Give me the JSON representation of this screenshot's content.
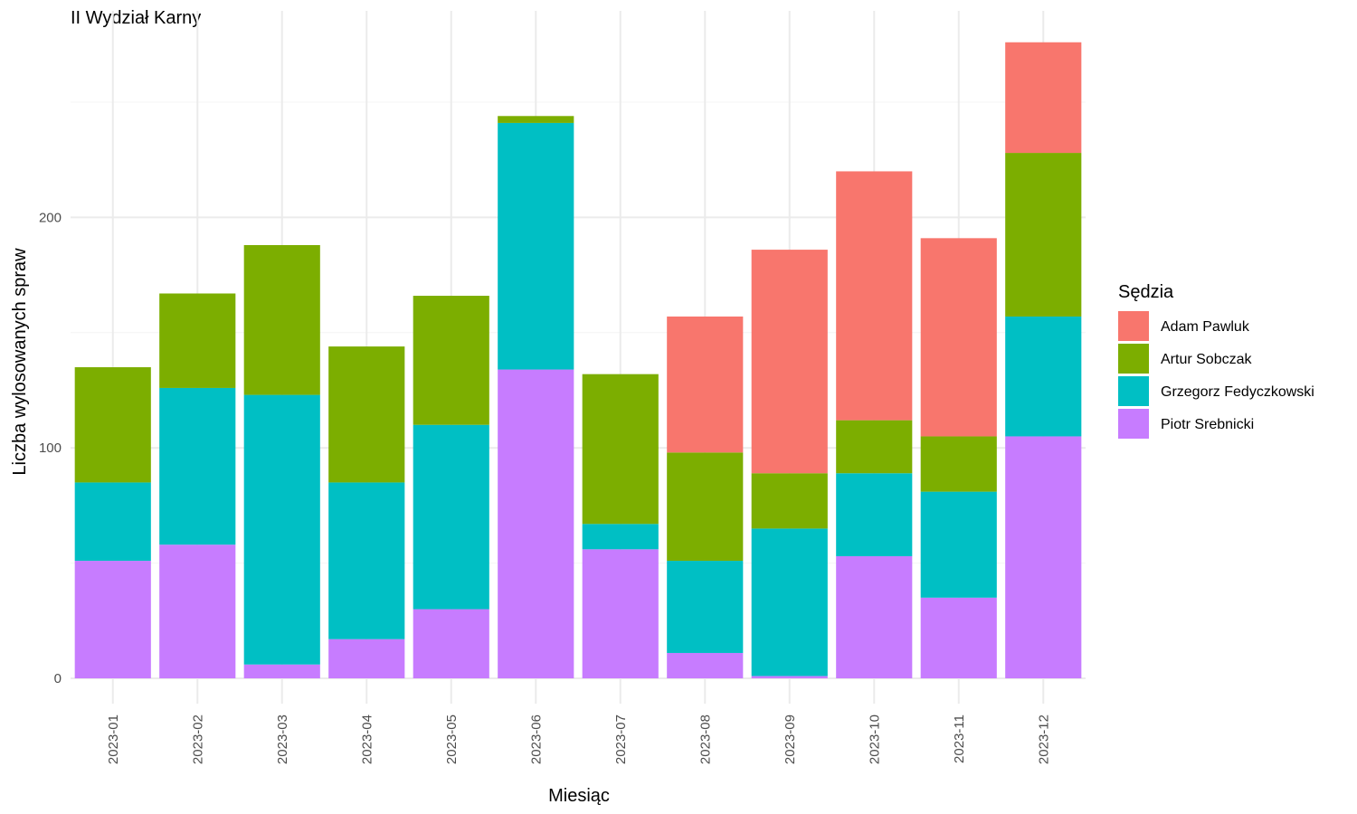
{
  "chart_data": {
    "type": "bar",
    "stacked": true,
    "title": "II Wydział Karny",
    "xlabel": "Miesiąc",
    "ylabel": "Liczba wylosowanych spraw",
    "ylim": [
      0,
      280
    ],
    "yticks": [
      0,
      100,
      200
    ],
    "grid": true,
    "legend": {
      "title": "Sędzia",
      "position": "right"
    },
    "categories": [
      "2023-01",
      "2023-02",
      "2023-03",
      "2023-04",
      "2023-05",
      "2023-06",
      "2023-07",
      "2023-08",
      "2023-09",
      "2023-10",
      "2023-11",
      "2023-12"
    ],
    "series": [
      {
        "name": "Adam Pawluk",
        "color": "#F8766D",
        "values": [
          0,
          0,
          0,
          0,
          0,
          0,
          0,
          59,
          97,
          108,
          86,
          48
        ]
      },
      {
        "name": "Artur Sobczak",
        "color": "#7CAE00",
        "values": [
          50,
          41,
          65,
          59,
          56,
          3,
          65,
          47,
          24,
          23,
          24,
          71
        ]
      },
      {
        "name": "Grzegorz Fedyczkowski",
        "color": "#00BFC4",
        "values": [
          34,
          68,
          117,
          68,
          80,
          107,
          11,
          40,
          64,
          36,
          46,
          52
        ]
      },
      {
        "name": "Piotr Srebnicki",
        "color": "#C77CFF",
        "values": [
          51,
          58,
          6,
          17,
          30,
          134,
          56,
          11,
          1,
          53,
          35,
          105
        ]
      }
    ]
  }
}
